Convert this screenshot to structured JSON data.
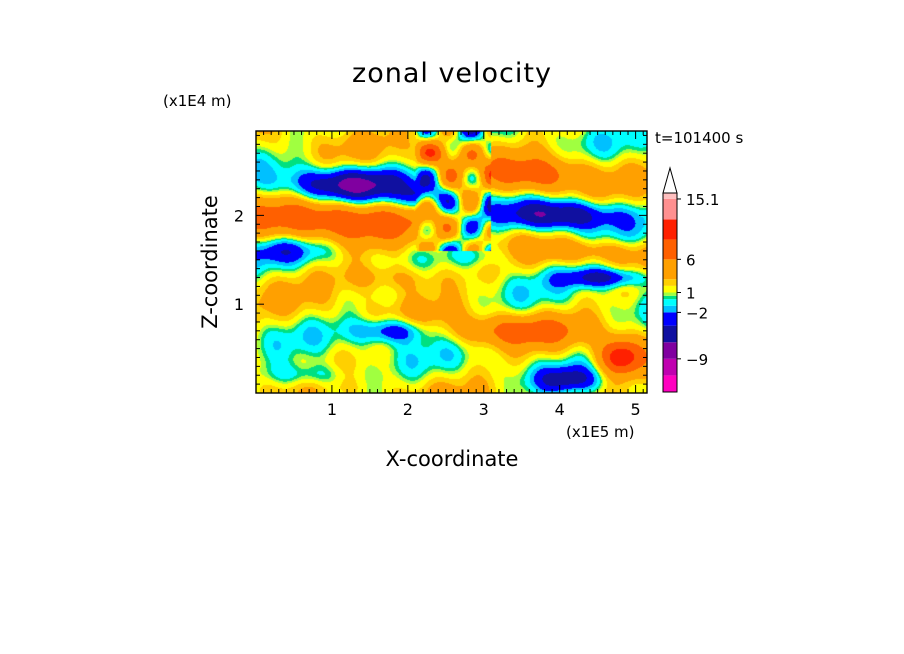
{
  "chart_data": {
    "type": "heatmap",
    "title": "zonal velocity",
    "xlabel": "X-coordinate",
    "ylabel": "Z-coordinate",
    "x_unit_label": "(x1E5 m)",
    "y_unit_label": "(x1E4 m)",
    "time_label": "t=101400 s",
    "xlim": [
      0,
      5.15
    ],
    "ylim": [
      0,
      2.95
    ],
    "x_ticks": [
      1,
      2,
      3,
      4,
      5
    ],
    "y_ticks": [
      1,
      2
    ],
    "x_tick_labels": [
      "1",
      "2",
      "3",
      "4",
      "5"
    ],
    "y_tick_labels": [
      "1",
      "2"
    ],
    "colorbar": {
      "labeled_levels": [
        15.1,
        6,
        1,
        -2,
        -9
      ],
      "labels": [
        "15.1",
        "6",
        "1",
        "−2",
        "−9"
      ],
      "vmin": -14,
      "vmax": 16,
      "bands": [
        {
          "lo": -14,
          "hi": -11.5,
          "color": "#ff00c0"
        },
        {
          "lo": -11.5,
          "hi": -9,
          "color": "#c000b0"
        },
        {
          "lo": -9,
          "hi": -6.5,
          "color": "#8000a0"
        },
        {
          "lo": -6.5,
          "hi": -4,
          "color": "#1010a0"
        },
        {
          "lo": -4,
          "hi": -2,
          "color": "#0000ff"
        },
        {
          "lo": -2,
          "hi": -1,
          "color": "#00c0ff"
        },
        {
          "lo": -1,
          "hi": 0,
          "color": "#00ffff"
        },
        {
          "lo": 0,
          "hi": 0.5,
          "color": "#00e080"
        },
        {
          "lo": 0.5,
          "hi": 1,
          "color": "#a0ff40"
        },
        {
          "lo": 1,
          "hi": 2,
          "color": "#ffff00"
        },
        {
          "lo": 2,
          "hi": 3,
          "color": "#ffd000"
        },
        {
          "lo": 3,
          "hi": 6,
          "color": "#ffa000"
        },
        {
          "lo": 6,
          "hi": 9,
          "color": "#ff6000"
        },
        {
          "lo": 9,
          "hi": 12,
          "color": "#ff2000"
        },
        {
          "lo": 12,
          "hi": 15.1,
          "color": "#ff9090"
        },
        {
          "lo": 15.1,
          "hi": 16,
          "color": "#ffc0c0"
        }
      ]
    },
    "features": [
      {
        "x": 1.2,
        "z": 2.35,
        "sx": 0.55,
        "sz": 0.13,
        "v": -8
      },
      {
        "x": 1.0,
        "z": 1.95,
        "sx": 0.8,
        "sz": 0.15,
        "v": 7
      },
      {
        "x": 0.4,
        "z": 1.6,
        "sx": 0.4,
        "sz": 0.1,
        "v": -3
      },
      {
        "x": 1.8,
        "z": 1.3,
        "sx": 0.5,
        "sz": 0.12,
        "v": 4
      },
      {
        "x": 1.8,
        "z": 0.7,
        "sx": 0.35,
        "sz": 0.1,
        "v": -6
      },
      {
        "x": 3.4,
        "z": 0.7,
        "sx": 0.6,
        "sz": 0.12,
        "v": 5
      },
      {
        "x": 4.0,
        "z": 2.0,
        "sx": 0.5,
        "sz": 0.12,
        "v": -8
      },
      {
        "x": 3.7,
        "z": 2.45,
        "sx": 0.45,
        "sz": 0.15,
        "v": 6
      },
      {
        "x": 4.6,
        "z": 1.3,
        "sx": 0.4,
        "sz": 0.08,
        "v": -7
      },
      {
        "x": 4.3,
        "z": 1.6,
        "sx": 0.6,
        "sz": 0.08,
        "v": 3
      },
      {
        "x": 2.4,
        "z": 2.7,
        "sx": 0.15,
        "sz": 0.1,
        "v": 7
      },
      {
        "x": 2.2,
        "z": 2.2,
        "sx": 0.2,
        "sz": 0.1,
        "v": -5
      },
      {
        "x": 3.0,
        "z": 1.55,
        "sx": 0.3,
        "sz": 0.1,
        "v": -3
      },
      {
        "x": 4.8,
        "z": 0.4,
        "sx": 0.2,
        "sz": 0.15,
        "v": 10
      },
      {
        "x": 0.7,
        "z": 0.2,
        "sx": 0.4,
        "sz": 0.1,
        "v": -4
      },
      {
        "x": 4.1,
        "z": 0.15,
        "sx": 0.3,
        "sz": 0.1,
        "v": -5
      }
    ]
  }
}
